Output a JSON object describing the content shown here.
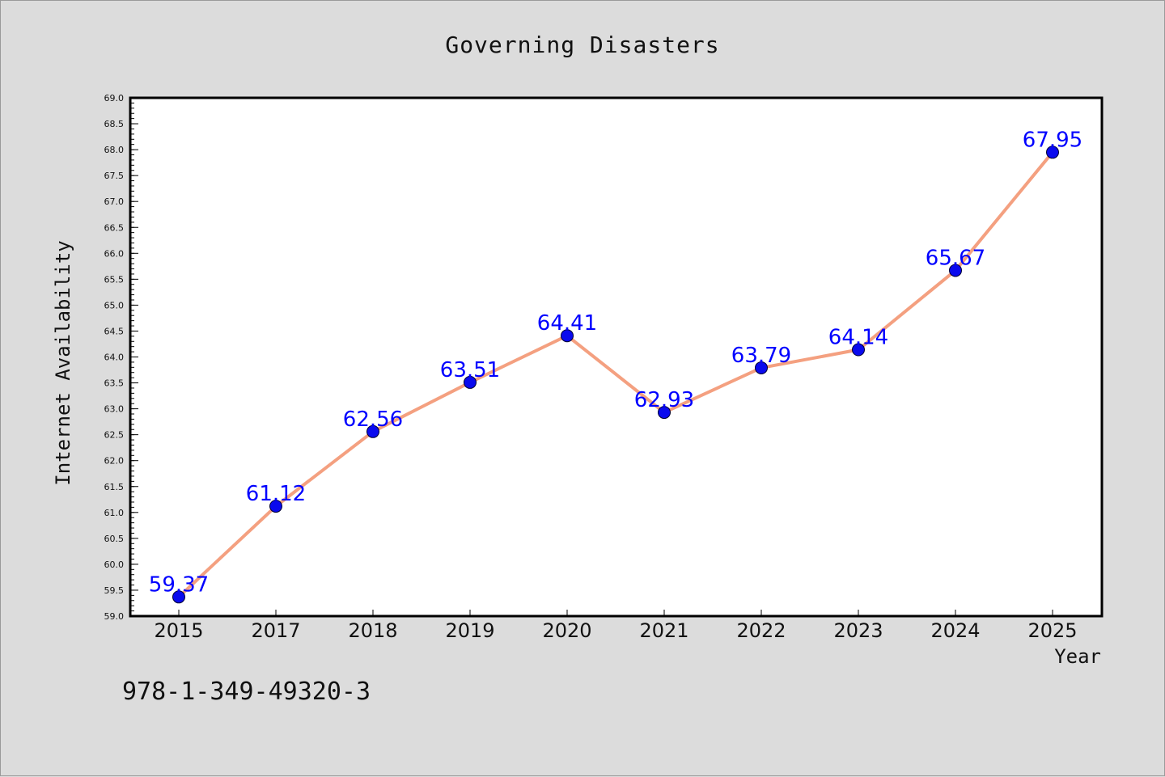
{
  "chart_data": {
    "type": "line",
    "title": "Governing Disasters",
    "xlabel": "Year",
    "ylabel": "Internet Availability",
    "categories": [
      "2015",
      "2017",
      "2018",
      "2019",
      "2020",
      "2021",
      "2022",
      "2023",
      "2024",
      "2025"
    ],
    "series": [
      {
        "values": [
          59.37,
          61.12,
          62.56,
          63.51,
          64.41,
          62.93,
          63.79,
          64.14,
          65.67,
          67.95
        ],
        "labels": [
          "59.37",
          "61.12",
          "62.56",
          "63.51",
          "64.41",
          "62.93",
          "63.79",
          "64.14",
          "65.67",
          "67.95"
        ]
      }
    ],
    "ylim": [
      59.0,
      69.0
    ],
    "yticks": [
      "59.0",
      "59.5",
      "60.0",
      "60.5",
      "61.0",
      "61.5",
      "62.0",
      "62.5",
      "63.0",
      "63.5",
      "64.0",
      "64.5",
      "65.0",
      "65.5",
      "66.0",
      "66.5",
      "67.0",
      "67.5",
      "68.0",
      "68.5",
      "69.0"
    ],
    "grid": false,
    "line_color": "#f4a080",
    "marker_color": "#0a0aee",
    "label_color": "#0000ff"
  },
  "footer": {
    "isbn": "978-1-349-49320-3"
  }
}
